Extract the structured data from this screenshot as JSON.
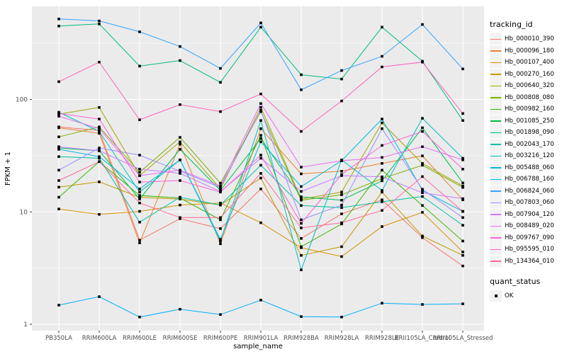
{
  "y_axis": {
    "title": "FPKM + 1",
    "tick_labels": [
      "1",
      "10",
      "100"
    ]
  },
  "x_axis": {
    "title": "sample_name"
  },
  "legend": {
    "tracking_title": "tracking_id",
    "quant_title": "quant_status",
    "quant_items": [
      {
        "label": "OK"
      }
    ]
  },
  "colors": {
    "panel_background": "#EBEBEB",
    "grid": "#FFFFFF",
    "axis_text": "#4D4D4D",
    "axis_title": "#000000",
    "point": "#000000",
    "legend_key_background": "#F2F2F2"
  },
  "chart_data": {
    "type": "line",
    "title": "",
    "xlabel": "sample_name",
    "ylabel": "FPKM + 1",
    "y_scale": "log10",
    "ylim": [
      1,
      660
    ],
    "y_major_ticks": [
      1,
      10,
      100
    ],
    "y_minor_ticks": [
      3.162,
      31.62,
      316.2
    ],
    "grid": true,
    "legend_position": "right",
    "point_shape": "filled-black-square",
    "categories": [
      "PB350LA",
      "RRIM600LA",
      "RRIM600LE",
      "RRIM600SE",
      "RRIM600PE",
      "RRIM901LA",
      "RRIM928BA",
      "RRIM928LA",
      "RRIM928LE",
      "RRII105LA_Control",
      "RRII105LA_Stressed"
    ],
    "series": [
      {
        "name": "Hb_000010_390",
        "color": "#F8766D",
        "quant_status": "OK",
        "values": [
          57,
          53,
          5.6,
          8.7,
          7.1,
          16,
          5.8,
          9.6,
          12.8,
          5.9,
          3.3
        ]
      },
      {
        "name": "Hb_000096_180",
        "color": "#EA8331",
        "quant_status": "OK",
        "values": [
          56,
          50,
          5.3,
          40,
          5.2,
          55,
          21.8,
          23,
          27,
          31.5,
          12.8
        ]
      },
      {
        "name": "Hb_000107_400",
        "color": "#D89000",
        "quant_status": "OK",
        "values": [
          10.6,
          9.5,
          10.1,
          11.5,
          12,
          8,
          4.8,
          4,
          7.4,
          9.9,
          4.4
        ]
      },
      {
        "name": "Hb_000270_160",
        "color": "#C09B00",
        "quant_status": "OK",
        "values": [
          16.6,
          18.5,
          13.5,
          13,
          11.5,
          20,
          4.1,
          4.9,
          15,
          6.1,
          4.1
        ]
      },
      {
        "name": "Hb_000640_320",
        "color": "#A3A500",
        "quant_status": "OK",
        "values": [
          74,
          85,
          21,
          42,
          16,
          85,
          13,
          15,
          62,
          27,
          17
        ]
      },
      {
        "name": "Hb_000808_080",
        "color": "#7CAE00",
        "quant_status": "OK",
        "values": [
          46.5,
          57,
          22.5,
          46,
          18,
          78,
          12.7,
          14.2,
          19.8,
          26,
          16.5
        ]
      },
      {
        "name": "Hb_000982_160",
        "color": "#39B600",
        "quant_status": "OK",
        "values": [
          13.5,
          28,
          14,
          13.3,
          8.5,
          48,
          4.9,
          7.8,
          23.5,
          11.4,
          5.5
        ]
      },
      {
        "name": "Hb_001085_250",
        "color": "#00BB4E",
        "quant_status": "OK",
        "values": [
          37,
          35,
          13,
          36,
          15.5,
          45,
          13.6,
          12.7,
          18.9,
          56,
          18.1
        ]
      },
      {
        "name": "Hb_001898_090",
        "color": "#00BF7D",
        "quant_status": "OK",
        "values": [
          450,
          470,
          198,
          222,
          142,
          440,
          166,
          152,
          440,
          219,
          65
        ]
      },
      {
        "name": "Hb_002043_170",
        "color": "#00C1A3",
        "quant_status": "OK",
        "values": [
          31,
          30,
          8.1,
          13.5,
          11.5,
          26,
          11.4,
          10.9,
          12.3,
          13.7,
          7.6
        ]
      },
      {
        "name": "Hb_003216_120",
        "color": "#00BFC4",
        "quant_status": "OK",
        "values": [
          77,
          52,
          15,
          29,
          5.5,
          65,
          3.05,
          29,
          15.5,
          68,
          30
        ]
      },
      {
        "name": "Hb_005488_060",
        "color": "#00BAE0",
        "quant_status": "OK",
        "values": [
          36,
          31,
          16,
          29,
          5.7,
          42,
          16.8,
          28.5,
          67,
          15.5,
          10.1
        ]
      },
      {
        "name": "Hb_006788_160",
        "color": "#00B0F6",
        "quant_status": "OK",
        "values": [
          1.48,
          1.76,
          1.16,
          1.36,
          1.22,
          1.64,
          1.17,
          1.16,
          1.54,
          1.5,
          1.52
        ]
      },
      {
        "name": "Hb_006824_060",
        "color": "#35A2FF",
        "quant_status": "OK",
        "values": [
          520,
          500,
          400,
          296,
          189,
          480,
          122,
          181,
          242,
          465,
          187
        ]
      },
      {
        "name": "Hb_007803_060",
        "color": "#9590FF",
        "quant_status": "OK",
        "values": [
          23.5,
          37,
          32,
          23,
          16.5,
          80,
          8.5,
          11.5,
          55,
          15.9,
          8.9
        ]
      },
      {
        "name": "Hb_007904_120",
        "color": "#C77CFF",
        "quant_status": "OK",
        "values": [
          38,
          35,
          24,
          22,
          15.2,
          30,
          15.2,
          21,
          20.5,
          14.8,
          13.1
        ]
      },
      {
        "name": "Hb_008489_020",
        "color": "#E76BF3",
        "quant_status": "OK",
        "values": [
          71,
          55,
          21,
          23.5,
          17,
          92,
          25,
          28.5,
          30.5,
          38,
          29
        ]
      },
      {
        "name": "Hb_009767_090",
        "color": "#FA62DB",
        "quant_status": "OK",
        "values": [
          75,
          67,
          18.4,
          19,
          15,
          32,
          7.9,
          21.5,
          39,
          52,
          24
        ]
      },
      {
        "name": "Hb_095595_010",
        "color": "#FF62BC",
        "quant_status": "OK",
        "values": [
          144,
          215,
          66,
          90,
          78,
          112,
          52,
          97,
          195,
          215,
          75
        ]
      },
      {
        "name": "Hb_134364_010",
        "color": "#FF6A98",
        "quant_status": "OK",
        "values": [
          19,
          28,
          12,
          8.9,
          8.9,
          22,
          7.2,
          8,
          10.3,
          20.6,
          10.1
        ]
      }
    ]
  }
}
